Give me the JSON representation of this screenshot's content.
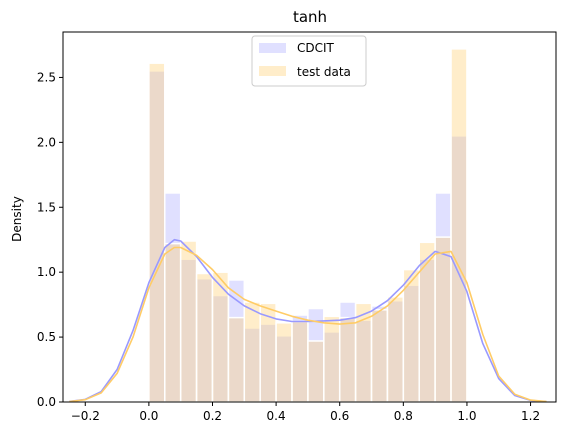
{
  "chart_data": {
    "type": "bar",
    "title": "tanh",
    "xlabel": "",
    "ylabel": "Density",
    "xlim": [
      -0.27,
      1.28
    ],
    "ylim": [
      0.0,
      2.85
    ],
    "xticks": [
      -0.2,
      0.0,
      0.2,
      0.4,
      0.6,
      0.8,
      1.0,
      1.2
    ],
    "yticks": [
      0.0,
      0.5,
      1.0,
      1.5,
      2.0,
      2.5
    ],
    "grid": false,
    "legend_position": "top-center",
    "bin_edges": [
      0.0,
      0.05,
      0.1,
      0.15,
      0.2,
      0.25,
      0.3,
      0.35,
      0.4,
      0.45,
      0.5,
      0.55,
      0.6,
      0.65,
      0.7,
      0.75,
      0.8,
      0.85,
      0.9,
      0.95,
      1.0
    ],
    "series": [
      {
        "name": "CDCIT",
        "color": "#9999ff",
        "hist_values": [
          2.55,
          1.61,
          1.1,
          0.95,
          0.82,
          0.94,
          0.57,
          0.6,
          0.51,
          0.67,
          0.72,
          0.54,
          0.77,
          0.63,
          0.74,
          0.78,
          0.9,
          1.1,
          1.61,
          2.05
        ],
        "kde": {
          "x": [
            -0.25,
            -0.2,
            -0.15,
            -0.1,
            -0.05,
            0.0,
            0.05,
            0.08,
            0.1,
            0.15,
            0.2,
            0.25,
            0.3,
            0.35,
            0.4,
            0.45,
            0.5,
            0.55,
            0.6,
            0.65,
            0.7,
            0.75,
            0.8,
            0.85,
            0.9,
            0.95,
            1.0,
            1.05,
            1.1,
            1.15,
            1.2,
            1.25
          ],
          "y": [
            0.005,
            0.02,
            0.08,
            0.25,
            0.55,
            0.92,
            1.19,
            1.25,
            1.24,
            1.12,
            0.96,
            0.83,
            0.74,
            0.68,
            0.64,
            0.62,
            0.62,
            0.625,
            0.63,
            0.65,
            0.7,
            0.78,
            0.9,
            1.05,
            1.16,
            1.12,
            0.85,
            0.45,
            0.18,
            0.05,
            0.012,
            0.002
          ]
        }
      },
      {
        "name": "test data",
        "color": "#ffcc66",
        "hist_values": [
          2.61,
          1.22,
          1.24,
          0.99,
          1.0,
          0.65,
          0.77,
          0.76,
          0.61,
          0.62,
          0.47,
          0.66,
          0.65,
          0.76,
          0.71,
          0.81,
          1.02,
          1.23,
          1.27,
          2.72
        ],
        "kde": {
          "x": [
            -0.25,
            -0.2,
            -0.15,
            -0.1,
            -0.05,
            0.0,
            0.05,
            0.08,
            0.1,
            0.15,
            0.2,
            0.25,
            0.3,
            0.35,
            0.4,
            0.45,
            0.5,
            0.55,
            0.6,
            0.65,
            0.7,
            0.75,
            0.8,
            0.85,
            0.9,
            0.95,
            1.0,
            1.05,
            1.1,
            1.15,
            1.2,
            1.25
          ],
          "y": [
            0.004,
            0.018,
            0.07,
            0.22,
            0.5,
            0.88,
            1.14,
            1.19,
            1.19,
            1.13,
            1.02,
            0.88,
            0.79,
            0.74,
            0.7,
            0.66,
            0.63,
            0.61,
            0.6,
            0.61,
            0.66,
            0.74,
            0.86,
            1.0,
            1.14,
            1.16,
            0.92,
            0.52,
            0.2,
            0.06,
            0.015,
            0.003
          ]
        }
      }
    ]
  }
}
